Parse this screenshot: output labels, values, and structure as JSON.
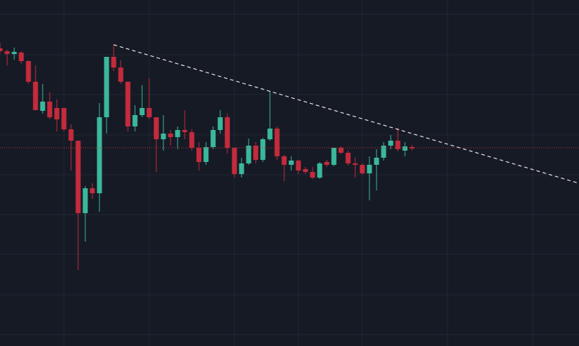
{
  "chart_data": {
    "type": "candlestick",
    "open": [
      419,
      415,
      411,
      413,
      401,
      372,
      331,
      344,
      335,
      335,
      305,
      289,
      187,
      222,
      215,
      322,
      407,
      392,
      372,
      309,
      325,
      335,
      322,
      291,
      299,
      294,
      304,
      301,
      279,
      259,
      280,
      304,
      322,
      279,
      242,
      257,
      282,
      262,
      291,
      306,
      267,
      255,
      261,
      249,
      245,
      237,
      259,
      255,
      279,
      272,
      257,
      255,
      243,
      255,
      265,
      282,
      289,
      275,
      280
    ],
    "high": [
      427,
      417,
      420,
      415,
      402,
      395,
      369,
      357,
      347,
      335,
      312,
      289,
      225,
      229,
      342,
      407,
      425,
      402,
      372,
      339,
      367,
      377,
      322,
      325,
      304,
      309,
      332,
      305,
      287,
      287,
      309,
      332,
      327,
      279,
      265,
      292,
      287,
      293,
      359,
      309,
      269,
      267,
      262,
      252,
      252,
      259,
      262,
      279,
      281,
      275,
      265,
      257,
      267,
      277,
      287,
      297,
      307,
      287,
      283
    ],
    "low": [
      412,
      395,
      403,
      397,
      369,
      332,
      327,
      319,
      302,
      302,
      247,
      107,
      147,
      207,
      189,
      299,
      387,
      369,
      302,
      302,
      322,
      319,
      245,
      275,
      282,
      277,
      291,
      275,
      247,
      255,
      277,
      299,
      271,
      237,
      237,
      255,
      257,
      259,
      289,
      262,
      232,
      247,
      242,
      242,
      235,
      235,
      252,
      253,
      270,
      254,
      237,
      241,
      205,
      219,
      261,
      277,
      274,
      267,
      275
    ],
    "close": [
      415,
      411,
      414,
      401,
      372,
      332,
      344,
      322,
      319,
      305,
      289,
      187,
      222,
      215,
      322,
      407,
      392,
      372,
      309,
      325,
      335,
      322,
      291,
      299,
      294,
      304,
      301,
      279,
      259,
      280,
      304,
      322,
      279,
      242,
      257,
      282,
      262,
      291,
      306,
      267,
      255,
      261,
      247,
      245,
      237,
      257,
      255,
      279,
      272,
      257,
      255,
      243,
      255,
      265,
      282,
      289,
      277,
      281,
      278
    ],
    "up_color": "#3bb89c",
    "down_color": "#c42b3c",
    "xlim": [
      0,
      81.5
    ],
    "ylim": [
      0,
      487
    ],
    "last_price_line": {
      "value": 279,
      "color": "#b8323c"
    },
    "trendline": {
      "x": [
        16,
        81.5
      ],
      "y": [
        424,
        229
      ],
      "color": "#e6e6e6"
    }
  }
}
